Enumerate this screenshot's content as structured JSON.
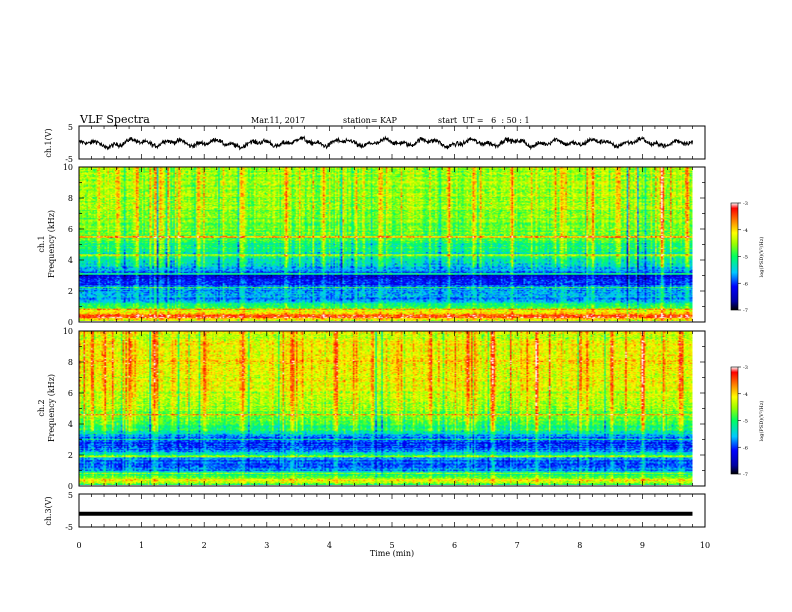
{
  "header": {
    "title": "VLF Spectra",
    "date": "Mar.11, 2017",
    "station": "station= KAP",
    "start": "start  UT =   6  : 50 : 1"
  },
  "chart_data": [
    {
      "type": "line",
      "panel": "channel-1-waveform",
      "ylabel": "ch.1(V)",
      "ylim": [
        -5,
        5
      ],
      "yticks": [
        "5",
        "-5"
      ],
      "xlim": [
        0,
        10
      ],
      "x_extent": [
        0,
        9.8
      ],
      "series": [
        {
          "color": "#000000",
          "amplitude_range": [
            -2.3,
            1.8
          ],
          "x": [
            0,
            0.5,
            1,
            1.5,
            2,
            2.5,
            3,
            3.5,
            4,
            4.5,
            5,
            5.5,
            6,
            6.5,
            7,
            7.5,
            8,
            8.5,
            9,
            9.5,
            9.8
          ],
          "values": [
            -0.4,
            -0.6,
            0.2,
            -0.2,
            0.0,
            -0.5,
            -0.3,
            0.3,
            -0.1,
            -0.2,
            0.0,
            0.2,
            -0.4,
            0.1,
            0.0,
            -0.3,
            0.2,
            -0.2,
            0.1,
            -0.3,
            -0.5
          ]
        }
      ]
    },
    {
      "type": "heatmap",
      "panel": "channel-1-spectrogram",
      "ylabel_top": "ch.1",
      "ylabel": "Frequency (kHz)",
      "ylim": [
        0,
        10
      ],
      "yticks": [
        "0",
        "2",
        "4",
        "6",
        "8",
        "10"
      ],
      "xlim": [
        0,
        10
      ],
      "x_extent": [
        0,
        9.8
      ],
      "colorbar": {
        "label": "log(PSD)(V²/Hz)",
        "range": [
          -7,
          -3
        ],
        "ticks": [
          "-3",
          "-4",
          "-5",
          "-6",
          "-7"
        ]
      },
      "frequency_profile_log_psd": {
        "kHz": [
          0,
          0.3,
          0.6,
          1.0,
          1.5,
          2.0,
          2.5,
          3.0,
          3.5,
          4.0,
          4.5,
          5.0,
          5.5,
          6.0,
          7.0,
          8.0,
          9.0,
          10.0
        ],
        "values": [
          -5.0,
          -3.2,
          -4.2,
          -5.0,
          -5.8,
          -5.6,
          -6.1,
          -6.3,
          -5.6,
          -5.3,
          -5.2,
          -5.0,
          -4.7,
          -4.8,
          -4.6,
          -4.5,
          -4.4,
          -4.5
        ]
      },
      "horizontal_lines_kHz": [
        0.8,
        2.2,
        3.1,
        4.3,
        5.5
      ],
      "strong_bursts_min": [
        0.3,
        0.6,
        0.9,
        1.3,
        1.9,
        2.6,
        3.3,
        3.9,
        4.8,
        5.9,
        6.3,
        6.9,
        7.7,
        8.2,
        8.6,
        9.3,
        9.7
      ]
    },
    {
      "type": "heatmap",
      "panel": "channel-2-spectrogram",
      "ylabel_top": "ch.2",
      "ylabel": "Frequency (kHz)",
      "ylim": [
        0,
        10
      ],
      "yticks": [
        "0",
        "2",
        "4",
        "6",
        "8",
        "10"
      ],
      "xlim": [
        0,
        10
      ],
      "x_extent": [
        0,
        9.8
      ],
      "colorbar": {
        "label": "log(PSD)(V²/Hz)",
        "range": [
          -7,
          -3
        ],
        "ticks": [
          "-3",
          "-4",
          "-5",
          "-6",
          "-7"
        ]
      },
      "frequency_profile_log_psd": {
        "kHz": [
          0,
          0.3,
          0.6,
          1.0,
          1.5,
          2.0,
          2.5,
          3.0,
          3.5,
          4.0,
          4.5,
          5.0,
          5.5,
          6.0,
          7.0,
          8.0,
          9.0,
          10.0
        ],
        "values": [
          -5.0,
          -4.0,
          -4.8,
          -5.8,
          -5.9,
          -5.4,
          -6.0,
          -6.0,
          -5.2,
          -4.9,
          -4.7,
          -4.5,
          -4.4,
          -4.3,
          -4.2,
          -4.1,
          -4.2,
          -4.3
        ]
      },
      "horizontal_lines_kHz": [
        0.8,
        1.9,
        3.0,
        4.6
      ],
      "strong_bursts_min": [
        0.4,
        0.8,
        1.2,
        1.5,
        2.0,
        2.6,
        3.4,
        4.1,
        4.4,
        5.6,
        6.2,
        6.6,
        7.3,
        8.0,
        8.5,
        9.0,
        9.6
      ]
    },
    {
      "type": "line",
      "panel": "channel-3-waveform",
      "ylabel": "ch.3(V)",
      "ylim": [
        -5,
        5
      ],
      "yticks": [
        "5",
        "-5"
      ],
      "xlim": [
        0,
        10
      ],
      "x_extent": [
        0,
        9.8
      ],
      "xticks": [
        "0",
        "1",
        "2",
        "3",
        "4",
        "5",
        "6",
        "7",
        "8",
        "9",
        "10"
      ],
      "xlabel": "Time (min)",
      "series": [
        {
          "color": "#000000",
          "x": [
            0,
            9.8
          ],
          "values": [
            -1.0,
            -1.0
          ]
        }
      ]
    }
  ]
}
